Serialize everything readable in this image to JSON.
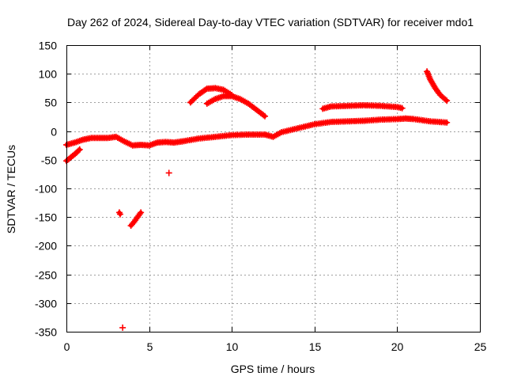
{
  "chart_data": {
    "type": "scatter",
    "title": "Day 262 of 2024, Sidereal Day-to-day VTEC variation (SDTVAR) for receiver mdo1",
    "xlabel": "GPS time / hours",
    "ylabel": "SDTVAR / TECUs",
    "xlim": [
      0,
      25
    ],
    "ylim": [
      -350,
      150
    ],
    "xticks": [
      0,
      5,
      10,
      15,
      20,
      25
    ],
    "yticks": [
      150,
      100,
      50,
      0,
      -50,
      -100,
      -150,
      -200,
      -250,
      -300,
      -350
    ],
    "grid": true,
    "marker": "+",
    "series_color": "#ff0000",
    "series": [
      {
        "name": "main-trace-early",
        "x": [
          0,
          0.5,
          1,
          1.5,
          2,
          2.5,
          3,
          3.5,
          4,
          4.5,
          5,
          5.5,
          6,
          6.5,
          7
        ],
        "y": [
          -24,
          -20,
          -15,
          -12,
          -12,
          -12,
          -10,
          -18,
          -25,
          -24,
          -25,
          -20,
          -19,
          -20,
          -18
        ]
      },
      {
        "name": "main-trace-mid",
        "x": [
          7,
          8,
          9,
          10,
          11,
          12,
          12.5,
          13,
          14,
          15,
          16,
          17,
          18
        ],
        "y": [
          -18,
          -13,
          -10,
          -7,
          -6,
          -6,
          -10,
          -2,
          5,
          12,
          16,
          17,
          18
        ]
      },
      {
        "name": "main-trace-late",
        "x": [
          18,
          19,
          20,
          20.5,
          21,
          22,
          23
        ],
        "y": [
          18,
          20,
          21,
          22,
          21,
          17,
          15
        ]
      },
      {
        "name": "negative-start",
        "x": [
          0,
          0.3,
          0.6,
          0.8
        ],
        "y": [
          -52,
          -45,
          -38,
          -32
        ]
      },
      {
        "name": "arc-1",
        "x": [
          7.5,
          8.0,
          8.5,
          9.0,
          9.5,
          10.0
        ],
        "y": [
          50,
          64,
          74,
          75,
          72,
          63
        ]
      },
      {
        "name": "arc-2",
        "x": [
          8.5,
          9.0,
          9.5,
          10.0,
          10.5,
          11.0,
          11.5,
          12.0
        ],
        "y": [
          48,
          56,
          61,
          61,
          56,
          48,
          37,
          26
        ]
      },
      {
        "name": "plateau-40",
        "x": [
          15.5,
          16,
          17,
          18,
          19,
          20,
          20.3
        ],
        "y": [
          39,
          43,
          44,
          45,
          44,
          42,
          40
        ]
      },
      {
        "name": "high-drop",
        "x": [
          21.8,
          22.0,
          22.3,
          22.6,
          23.0
        ],
        "y": [
          104,
          90,
          75,
          63,
          53
        ]
      },
      {
        "name": "isolated-minus-73",
        "x": [
          6.2
        ],
        "y": [
          -73
        ]
      },
      {
        "name": "isolated-minus-143",
        "x": [
          3.2,
          3.25
        ],
        "y": [
          -142,
          -145
        ]
      },
      {
        "name": "isolated-minus-343",
        "x": [
          3.4
        ],
        "y": [
          -343
        ]
      },
      {
        "name": "falling-segment",
        "x": [
          3.9,
          4.1,
          4.3,
          4.5
        ],
        "y": [
          -165,
          -158,
          -150,
          -142
        ]
      }
    ]
  }
}
